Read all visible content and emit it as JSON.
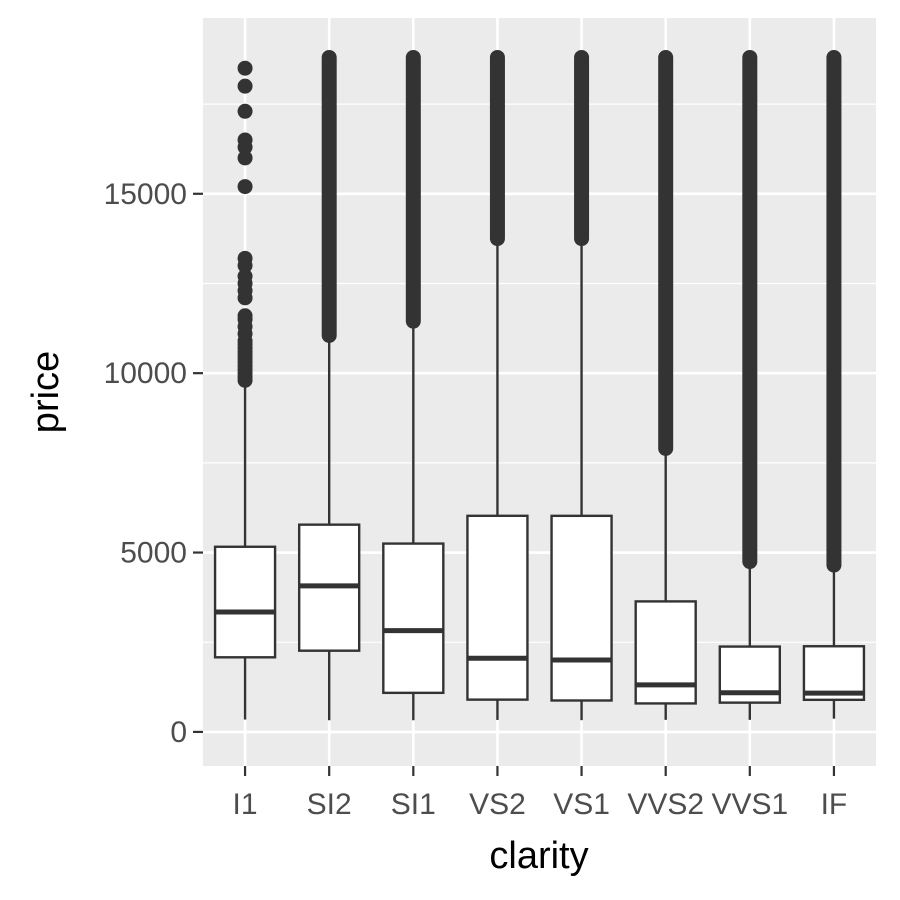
{
  "chart_data": {
    "type": "boxplot",
    "title": "",
    "xlabel": "clarity",
    "ylabel": "price",
    "ylim": [
      -950,
      19900
    ],
    "yticks": [
      0,
      5000,
      10000,
      15000
    ],
    "ytick_labels": [
      "0",
      "5000",
      "10000",
      "15000"
    ],
    "grid": true,
    "colors": {
      "panel": "#ebebeb",
      "grid": "#ffffff",
      "box_fill": "#ffffff",
      "stroke": "#333333",
      "outlier": "#333333"
    },
    "categories": [
      "I1",
      "SI2",
      "SI1",
      "VS2",
      "VS1",
      "VVS2",
      "VVS1",
      "IF"
    ],
    "boxes": [
      {
        "category": "I1",
        "whisker_low": 345,
        "q1": 2080,
        "median": 3344,
        "q3": 5161,
        "whisker_high": 9750,
        "outliers": [
          9800,
          9900,
          10000,
          10100,
          10200,
          10300,
          10400,
          10500,
          10600,
          10700,
          10800,
          10900,
          11100,
          11300,
          11500,
          11600,
          12100,
          12300,
          12500,
          12700,
          13000,
          13200,
          15200,
          16000,
          16300,
          16500,
          17300,
          18000,
          18500
        ]
      },
      {
        "category": "SI2",
        "whisker_low": 326,
        "q1": 2264,
        "median": 4072,
        "q3": 5777,
        "whisker_high": 11000,
        "outlier_range": [
          11050,
          18800
        ]
      },
      {
        "category": "SI1",
        "whisker_low": 326,
        "q1": 1089,
        "median": 2822,
        "q3": 5250,
        "whisker_high": 11400,
        "outlier_range": [
          11450,
          18800
        ]
      },
      {
        "category": "VS2",
        "whisker_low": 334,
        "q1": 900,
        "median": 2054,
        "q3": 6024,
        "whisker_high": 13700,
        "outlier_range": [
          13750,
          18800
        ]
      },
      {
        "category": "VS1",
        "whisker_low": 327,
        "q1": 876,
        "median": 2005,
        "q3": 6023,
        "whisker_high": 13700,
        "outlier_range": [
          13750,
          18800
        ]
      },
      {
        "category": "VVS2",
        "whisker_low": 336,
        "q1": 794,
        "median": 1311,
        "q3": 3638,
        "whisker_high": 7850,
        "outlier_range": [
          7900,
          18800
        ]
      },
      {
        "category": "VVS1",
        "whisker_low": 336,
        "q1": 816,
        "median": 1093,
        "q3": 2379,
        "whisker_high": 4700,
        "outlier_range": [
          4750,
          18800
        ]
      },
      {
        "category": "IF",
        "whisker_low": 369,
        "q1": 895,
        "median": 1080,
        "q3": 2388,
        "whisker_high": 4600,
        "outlier_range": [
          4650,
          18800
        ]
      }
    ]
  }
}
